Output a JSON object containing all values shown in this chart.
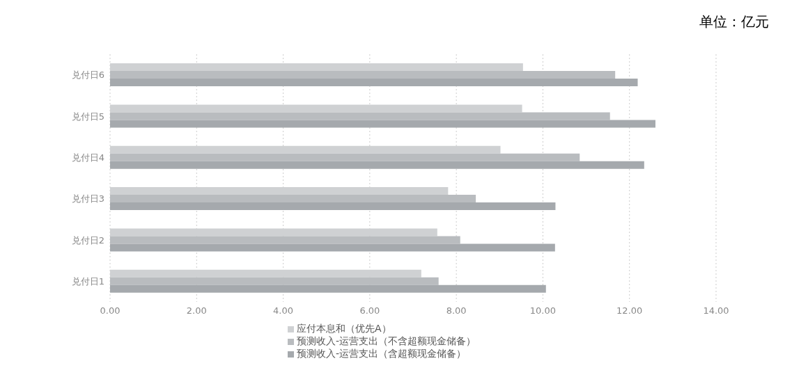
{
  "chart_data": {
    "type": "bar",
    "orientation": "horizontal",
    "categories": [
      "兑付日6",
      "兑付日5",
      "兑付日4",
      "兑付日3",
      "兑付日2",
      "兑付日1"
    ],
    "series": [
      {
        "name": "应付本息和（优先A）",
        "color": "#cfd1d3",
        "values": [
          9.54,
          9.52,
          9.02,
          7.81,
          7.56,
          7.19
        ]
      },
      {
        "name": "预测收入-运营支出（不含超额现金储备）",
        "color": "#b9bcbf",
        "values": [
          11.67,
          11.55,
          10.85,
          8.45,
          8.09,
          7.59
        ]
      },
      {
        "name": "预测收入-运营支出（含超额现金储备）",
        "color": "#a5a9ad",
        "values": [
          12.19,
          12.6,
          12.34,
          10.29,
          10.28,
          10.07
        ]
      }
    ],
    "xlim": [
      0,
      14
    ],
    "xticks": [
      {
        "value": 0,
        "label": "0.00"
      },
      {
        "value": 2,
        "label": "2.00"
      },
      {
        "value": 4,
        "label": "4.00"
      },
      {
        "value": 6,
        "label": "6.00"
      },
      {
        "value": 8,
        "label": "8.00"
      },
      {
        "value": 10,
        "label": "10.00"
      },
      {
        "value": 12,
        "label": "12.00"
      },
      {
        "value": 14,
        "label": "14.00"
      }
    ],
    "grid": "x",
    "legend": "bottom",
    "annotations": [
      "单位：亿元"
    ]
  }
}
